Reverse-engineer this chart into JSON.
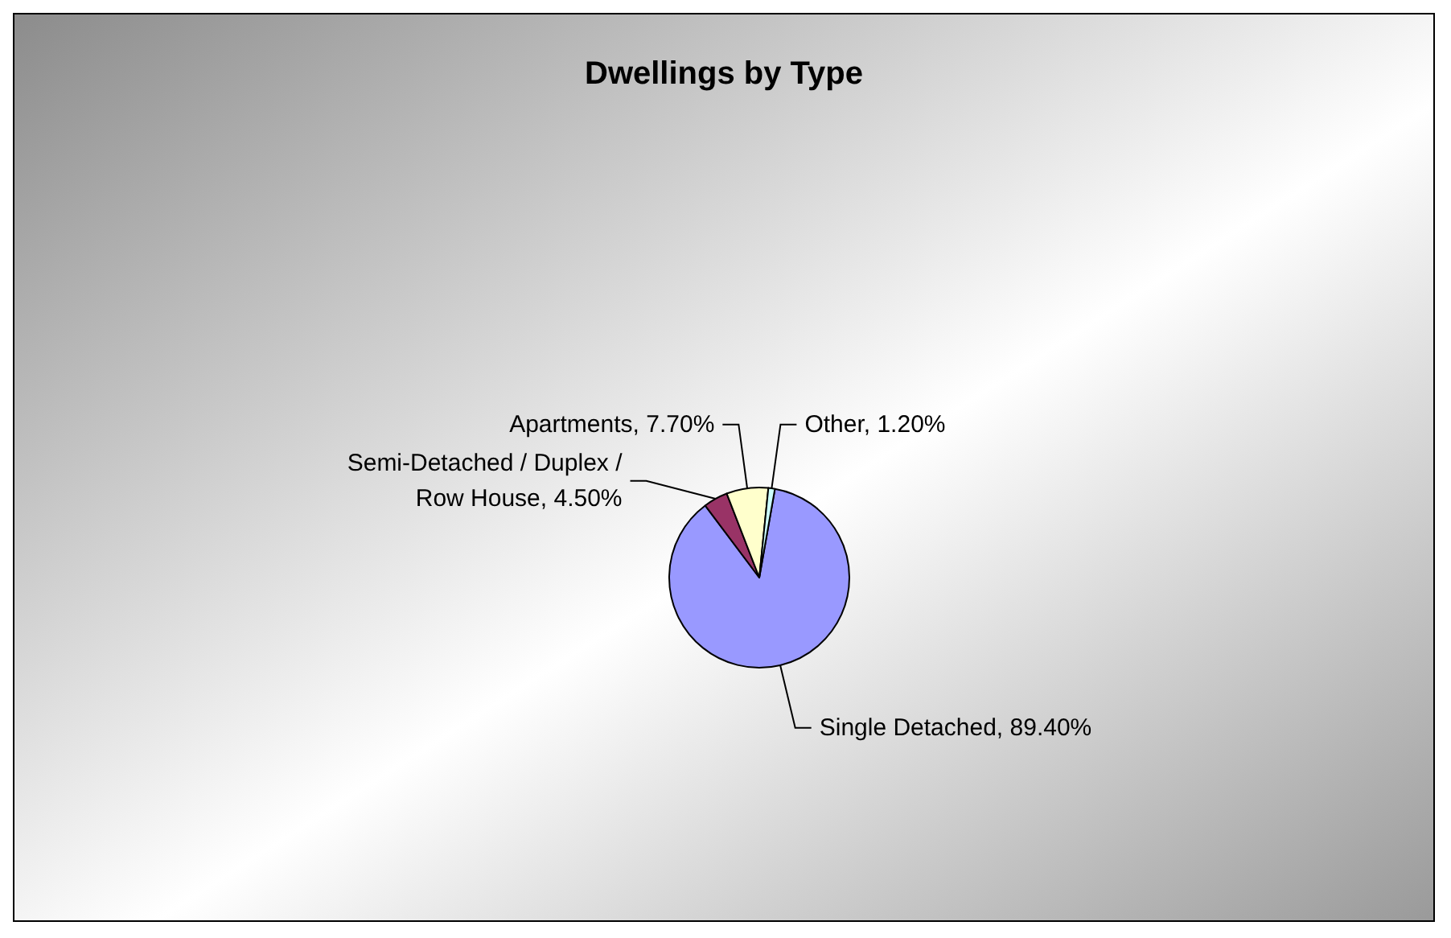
{
  "chart_data": {
    "type": "pie",
    "title": "Dwellings by Type",
    "categories": [
      "Single Detached",
      "Semi-Detached / Duplex / Row House",
      "Apartments",
      "Other"
    ],
    "values": [
      89.4,
      4.5,
      7.7,
      1.2
    ],
    "value_labels": [
      "89.40%",
      "4.50%",
      "7.70%",
      "1.20%"
    ],
    "colors": [
      "#9999ff",
      "#993366",
      "#ffffcc",
      "#ccffff"
    ],
    "legend": false
  }
}
